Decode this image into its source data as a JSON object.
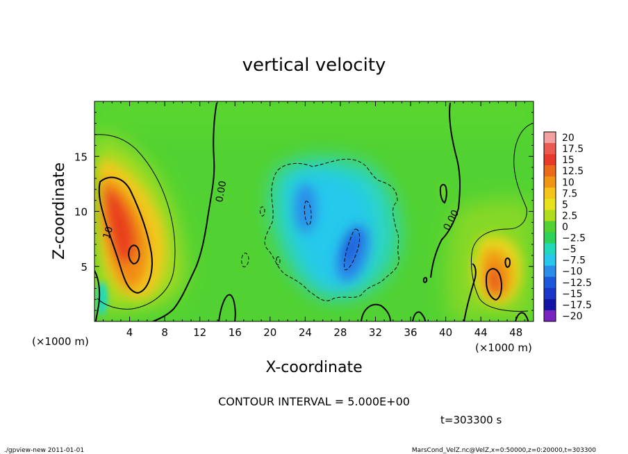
{
  "chart_data": {
    "type": "heatmap",
    "title": "vertical velocity",
    "xlabel": "X-coordinate",
    "ylabel": "Z-coordinate",
    "x_unit": "(×1000 m)",
    "z_unit": "(×1000 m)",
    "xlim": [
      0,
      50
    ],
    "ylim": [
      0,
      20
    ],
    "x_ticks": [
      "4",
      "8",
      "12",
      "16",
      "20",
      "24",
      "28",
      "32",
      "36",
      "40",
      "44",
      "48"
    ],
    "x_tick_values": [
      4,
      8,
      12,
      16,
      20,
      24,
      28,
      32,
      36,
      40,
      44,
      48
    ],
    "y_ticks": [
      "5",
      "10",
      "15"
    ],
    "y_tick_values": [
      5,
      10,
      15
    ],
    "colorbar_labels": [
      "20",
      "17.5",
      "15",
      "12.5",
      "10",
      "7.5",
      "5",
      "2.5",
      "0",
      "−2.5",
      "−5",
      "−7.5",
      "−10",
      "−12.5",
      "−15",
      "−17.5",
      "−20"
    ],
    "colorbar_levels": [
      20,
      17.5,
      15,
      12.5,
      10,
      7.5,
      5,
      2.5,
      0,
      -2.5,
      -5,
      -7.5,
      -10,
      -12.5,
      -15,
      -17.5,
      -20
    ],
    "colorbar_colors": [
      "#f2a0a0",
      "#ea5a50",
      "#e83a28",
      "#ea6a1a",
      "#f09414",
      "#f4c41a",
      "#e8e21c",
      "#b0dc1e",
      "#52d232",
      "#2ed25a",
      "#22d8ba",
      "#28c8ec",
      "#2a8ee8",
      "#1c58dc",
      "#1a36c8",
      "#1414a4",
      "#7a22c0"
    ],
    "contour_labels": [
      "0.00",
      "0.00",
      "10"
    ],
    "features": [
      {
        "name": "updraft-left",
        "x": 3.5,
        "z": 8.5,
        "peak": 13
      },
      {
        "name": "updraft-right",
        "x": 45.5,
        "z": 4.3,
        "peak": 11
      },
      {
        "name": "downdraft-center",
        "x": 26.5,
        "z": 8.5,
        "peak": -11
      }
    ],
    "contour_interval": "CONTOUR INTERVAL = 5.000E+00",
    "time": "t=303300 s"
  },
  "footer": {
    "left": "./gpview-new  2011-01-01",
    "right": "MarsCond_VelZ.nc@VelZ,x=0:50000,z=0:20000,t=303300"
  }
}
